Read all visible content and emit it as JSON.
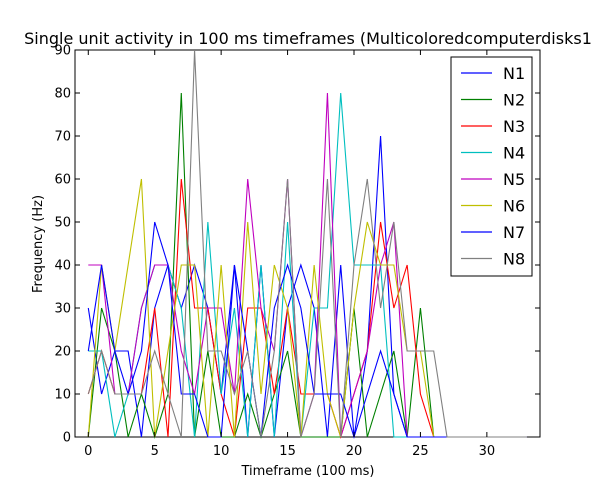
{
  "chart_data": {
    "type": "line",
    "title": "Single unit activity in 100 ms timeframes (Multicoloredcomputerdisks1",
    "xlabel": "Timeframe (100 ms)",
    "ylabel": "Frequency (Hz)",
    "xlim": [
      -1,
      34
    ],
    "ylim": [
      0,
      90
    ],
    "xticks": [
      0,
      5,
      10,
      15,
      20,
      25,
      30
    ],
    "yticks": [
      0,
      10,
      20,
      30,
      40,
      50,
      60,
      70,
      80,
      90
    ],
    "grid": false,
    "legend_position": "top-right",
    "series": [
      {
        "name": "N1",
        "color": "#0000ff",
        "values": [
          30,
          10,
          20,
          20,
          0,
          30,
          40,
          30,
          40,
          30,
          10,
          40,
          0,
          40,
          0,
          30,
          40,
          30,
          0,
          40,
          0,
          20,
          70,
          10,
          0,
          0,
          0,
          0,
          0,
          0,
          0,
          0,
          0,
          0
        ]
      },
      {
        "name": "N2",
        "color": "#008000",
        "values": [
          0,
          30,
          20,
          0,
          10,
          0,
          10,
          80,
          0,
          20,
          0,
          0,
          10,
          0,
          10,
          20,
          0,
          0,
          0,
          0,
          30,
          0,
          10,
          20,
          0,
          30,
          0,
          0,
          0,
          0,
          0,
          0,
          0,
          0
        ]
      },
      {
        "name": "N3",
        "color": "#ff0000",
        "values": [
          10,
          20,
          10,
          10,
          10,
          30,
          0,
          60,
          30,
          30,
          10,
          0,
          30,
          30,
          10,
          30,
          10,
          10,
          10,
          0,
          10,
          20,
          50,
          30,
          40,
          10,
          0,
          0,
          0,
          0,
          0,
          0,
          0,
          0
        ]
      },
      {
        "name": "N4",
        "color": "#00bfbf",
        "values": [
          20,
          20,
          0,
          10,
          30,
          40,
          40,
          30,
          0,
          50,
          10,
          30,
          0,
          40,
          0,
          50,
          0,
          30,
          30,
          80,
          40,
          40,
          40,
          0,
          0,
          0,
          0,
          0,
          0,
          0,
          0,
          0,
          0,
          0
        ]
      },
      {
        "name": "N5",
        "color": "#bf00bf",
        "values": [
          40,
          40,
          10,
          10,
          30,
          40,
          40,
          20,
          10,
          30,
          30,
          10,
          60,
          30,
          20,
          60,
          0,
          10,
          80,
          0,
          10,
          20,
          40,
          50,
          0,
          0,
          0,
          0,
          0,
          0,
          0,
          0,
          0,
          0
        ]
      },
      {
        "name": "N6",
        "color": "#bfbf00",
        "values": [
          0,
          40,
          20,
          40,
          60,
          0,
          20,
          40,
          40,
          0,
          40,
          0,
          50,
          10,
          40,
          30,
          0,
          40,
          10,
          0,
          30,
          50,
          40,
          40,
          20,
          20,
          0,
          0,
          0,
          0,
          0,
          0,
          0,
          0
        ]
      },
      {
        "name": "N7",
        "color": "#0000ff",
        "values": [
          20,
          40,
          20,
          10,
          20,
          50,
          40,
          10,
          10,
          0,
          0,
          40,
          20,
          0,
          30,
          40,
          30,
          10,
          10,
          10,
          0,
          10,
          20,
          10,
          0,
          0,
          0,
          0,
          0,
          0,
          0,
          0,
          0,
          0
        ]
      },
      {
        "name": "N8",
        "color": "#808080",
        "values": [
          10,
          20,
          10,
          10,
          10,
          20,
          10,
          0,
          90,
          20,
          20,
          10,
          20,
          0,
          20,
          60,
          0,
          10,
          60,
          0,
          40,
          60,
          30,
          50,
          20,
          20,
          20,
          0,
          0,
          0,
          0,
          0,
          0,
          0
        ]
      }
    ]
  }
}
